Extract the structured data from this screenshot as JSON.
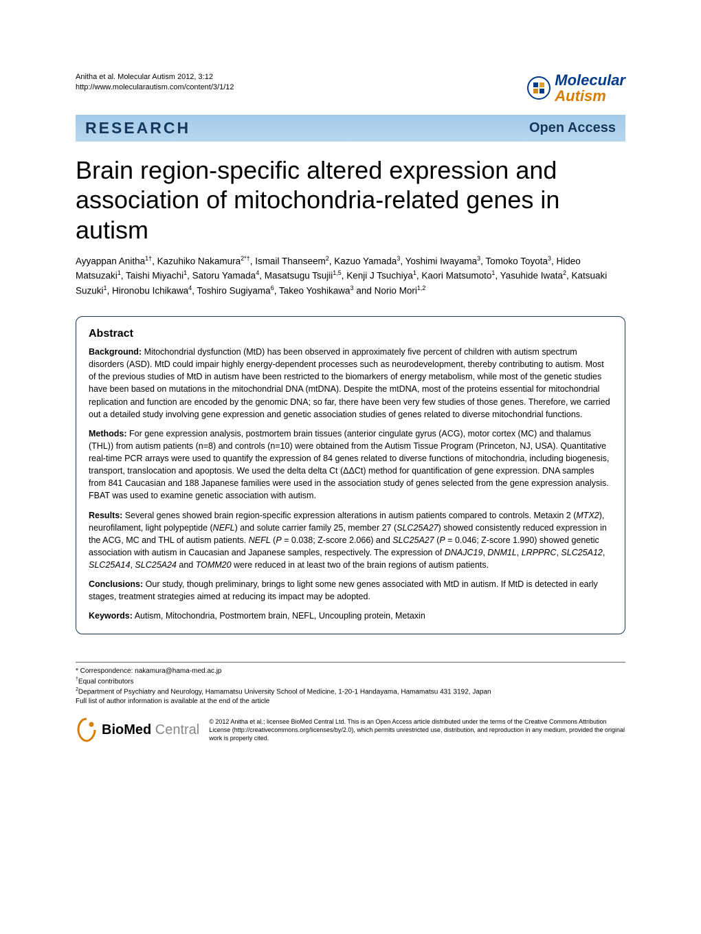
{
  "header": {
    "citation": "Anitha et al. Molecular Autism 2012, 3:12",
    "url": "http://www.molecularautism.com/content/3/1/12",
    "journal_logo": {
      "word1": "Molecular",
      "word2": "Autism"
    }
  },
  "banner": {
    "left": "RESEARCH",
    "right": "Open Access"
  },
  "title": "Brain region-specific altered expression and association of mitochondria-related genes in autism",
  "authors_html": "Ayyappan Anitha<sup>1†</sup>, Kazuhiko Nakamura<sup>2*†</sup>, Ismail Thanseem<sup>2</sup>, Kazuo Yamada<sup>3</sup>, Yoshimi Iwayama<sup>3</sup>, Tomoko Toyota<sup>3</sup>, Hideo Matsuzaki<sup>1</sup>, Taishi Miyachi<sup>1</sup>, Satoru Yamada<sup>4</sup>, Masatsugu Tsujii<sup>1,5</sup>, Kenji J Tsuchiya<sup>1</sup>, Kaori Matsumoto<sup>1</sup>, Yasuhide Iwata<sup>2</sup>, Katsuaki Suzuki<sup>1</sup>, Hironobu Ichikawa<sup>4</sup>, Toshiro Sugiyama<sup>6</sup>, Takeo Yoshikawa<sup>3</sup> and Norio Mori<sup>1,2</sup>",
  "abstract": {
    "heading": "Abstract",
    "background_label": "Background:",
    "background": " Mitochondrial dysfunction (MtD) has been observed in approximately five percent of children with autism spectrum disorders (ASD). MtD could impair highly energy-dependent processes such as neurodevelopment, thereby contributing to autism. Most of the previous studies of MtD in autism have been restricted to the biomarkers of energy metabolism, while most of the genetic studies have been based on mutations in the mitochondrial DNA (mtDNA). Despite the mtDNA, most of the proteins essential for mitochondrial replication and function are encoded by the genomic DNA; so far, there have been very few studies of those genes. Therefore, we carried out a detailed study involving gene expression and genetic association studies of genes related to diverse mitochondrial functions.",
    "methods_label": "Methods:",
    "methods": " For gene expression analysis, postmortem brain tissues (anterior cingulate gyrus (ACG), motor cortex (MC) and thalamus (THL)) from autism patients (n=8) and controls (n=10) were obtained from the Autism Tissue Program (Princeton, NJ, USA). Quantitative real-time PCR arrays were used to quantify the expression of 84 genes related to diverse functions of mitochondria, including biogenesis, transport, translocation and apoptosis. We used the delta delta Ct (ΔΔCt) method for quantification of gene expression. DNA samples from 841 Caucasian and 188 Japanese families were used in the association study of genes selected from the gene expression analysis. FBAT was used to examine genetic association with autism.",
    "results_label": "Results:",
    "results_html": " Several genes showed brain region-specific expression alterations in autism patients compared to controls. Metaxin 2 (<span class=\"italic\">MTX2</span>), neurofilament, light polypeptide (<span class=\"italic\">NEFL</span>) and solute carrier family 25, member 27 (<span class=\"italic\">SLC25A27</span>) showed consistently reduced expression in the ACG, MC and THL of autism patients. <span class=\"italic\">NEFL</span> (<span class=\"italic\">P</span> = 0.038; Z-score 2.066) and <span class=\"italic\">SLC25A27</span> (<span class=\"italic\">P</span> = 0.046; Z-score 1.990) showed genetic association with autism in Caucasian and Japanese samples, respectively. The expression of <span class=\"italic\">DNAJC19</span>, <span class=\"italic\">DNM1L</span>, <span class=\"italic\">LRPPRC</span>, <span class=\"italic\">SLC25A12</span>, <span class=\"italic\">SLC25A14</span>, <span class=\"italic\">SLC25A24</span> and <span class=\"italic\">TOMM20</span> were reduced in at least two of the brain regions of autism patients.",
    "conclusions_label": "Conclusions:",
    "conclusions": " Our study, though preliminary, brings to light some new genes associated with MtD in autism. If MtD is detected in early stages, treatment strategies aimed at reducing its impact may be adopted.",
    "keywords_label": "Keywords:",
    "keywords": " Autism, Mitochondria, Postmortem brain, NEFL, Uncoupling protein, Metaxin"
  },
  "footer": {
    "correspondence": "* Correspondence: nakamura@hama-med.ac.jp",
    "equal": "†Equal contributors",
    "affiliation": "2Department of Psychiatry and Neurology, Hamamatsu University School of Medicine, 1-20-1 Handayama, Hamamatsu 431 3192, Japan",
    "full_list": "Full list of author information is available at the end of the article",
    "bmc_label_bold": "BioMed",
    "bmc_label_light": " Central",
    "license": "© 2012 Anitha et al.; licensee BioMed Central Ltd. This is an Open Access article distributed under the terms of the Creative Commons Attribution License (http://creativecommons.org/licenses/by/2.0), which permits unrestricted use, distribution, and reproduction in any medium, provided the original work is properly cited."
  },
  "colors": {
    "banner_top": "#a2cbe9",
    "banner_bottom": "#b8d6ee",
    "banner_text": "#14395c",
    "abstract_border": "#14395c",
    "logo_blue": "#003b8c",
    "logo_orange": "#d97d00"
  }
}
